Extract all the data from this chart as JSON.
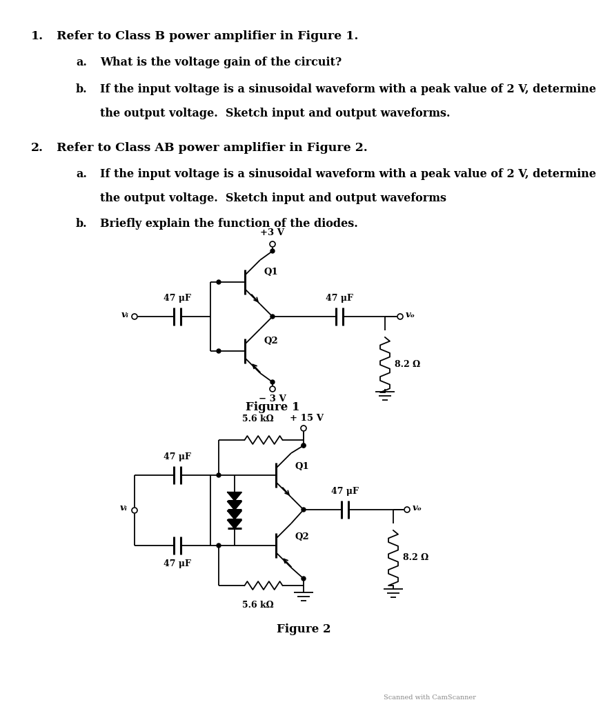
{
  "bg_color": "#ffffff",
  "line_color": "#000000",
  "fig_width": 7.37,
  "fig_height": 10.24,
  "q1_text": "Q1",
  "q2_text": "Q2",
  "figure1_label": "Figure 1",
  "figure2_label": "Figure 2",
  "plus3v": "+3 V",
  "minus3v": "− 3 V",
  "plus15v": "+ 15 V",
  "cap47_label": "47 μF",
  "res82_label": "8.2 Ω",
  "res56k_label": "5.6 kΩ",
  "vi_label": "vᵢ",
  "vo_label": "vₒ",
  "scanner_text": "Scanned with CamScanner",
  "item1_text": "1.",
  "item1_main": "Refer to Class B power amplifier in Figure 1.",
  "item1a_label": "a.",
  "item1a_text": "What is the voltage gain of the circuit?",
  "item1b_label": "b.",
  "item1b_text": "If the input voltage is a sinusoidal waveform with a peak value of 2 V, determine",
  "item1b_text2": "the output voltage.  Sketch input and output waveforms.",
  "item2_text": "2.",
  "item2_main": "Refer to Class AB power amplifier in Figure 2.",
  "item2a_label": "a.",
  "item2a_text": "If the input voltage is a sinusoidal waveform with a peak value of 2 V, determine",
  "item2a_text2": "the output voltage.  Sketch input and output waveforms",
  "item2b_label": "b.",
  "item2b_text": "Briefly explain the function of the diodes."
}
